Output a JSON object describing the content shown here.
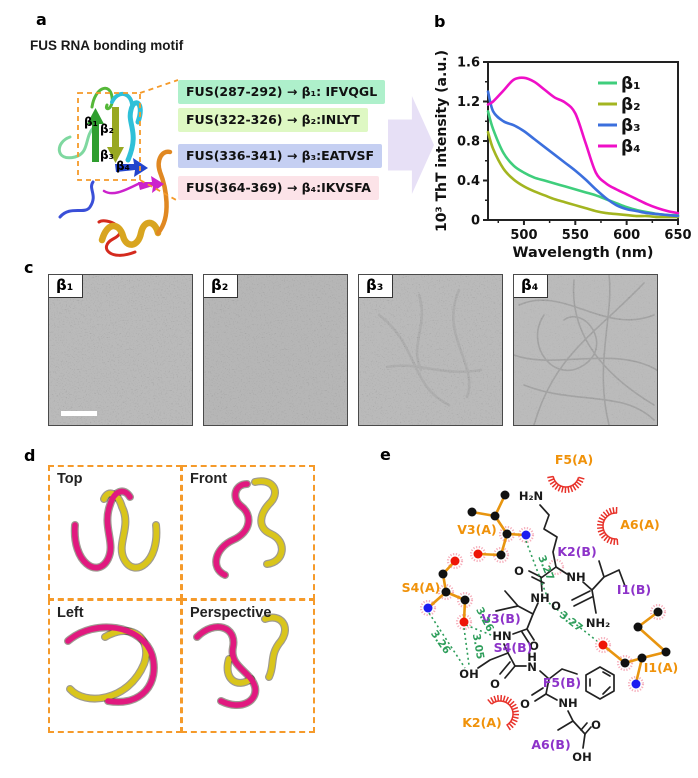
{
  "colors": {
    "beta1": "#3fce7c",
    "beta2": "#a3b520",
    "beta3": "#3b6fdd",
    "beta4": "#ef0fc7",
    "chain_a_label": "#f0920a",
    "chain_b_label": "#8d33c9",
    "hbond_green": "#2e9e5b",
    "contact_arc_red": "#e8322a",
    "map_box_backgrounds": [
      "#aef0cb",
      "#def8c3",
      "#c5cff2",
      "#fce3e8"
    ],
    "dashed_box_orange": "#f59a2a",
    "arrow_fill": "#e7e0f6",
    "tube_magenta": "#e1197f",
    "tube_yellow": "#d9c51b"
  },
  "panel_a": {
    "label": "a",
    "title": "FUS RNA bonding motif",
    "structure_beta_labels": [
      "β₁",
      "β₂",
      "β₃",
      "β₄"
    ],
    "mappings": [
      {
        "text": "FUS(287-292) → β₁: IFVQGL"
      },
      {
        "text": "FUS(322-326) → β₂:INLYT"
      },
      {
        "text": "FUS(336-341) → β₃:EATVSF"
      },
      {
        "text": "FUS(364-369) → β₄:IKVSFA"
      }
    ]
  },
  "panel_b": {
    "label": "b"
  },
  "chart_data": {
    "type": "line",
    "title": "",
    "xlabel": "Wavelength (nm)",
    "ylabel": "10³ ThT intensity (a.u.)",
    "xlim": [
      465,
      650
    ],
    "ylim": [
      0,
      1.6
    ],
    "xticks": [
      500,
      550,
      600,
      650
    ],
    "yticks": [
      0,
      0.4,
      0.8,
      1.2,
      1.6
    ],
    "grid": false,
    "legend_position": "upper right",
    "x": [
      465,
      470,
      480,
      490,
      500,
      510,
      520,
      530,
      540,
      550,
      560,
      570,
      580,
      590,
      600,
      610,
      620,
      630,
      640,
      650
    ],
    "series": [
      {
        "name": "β₁",
        "color": "#3fce7c",
        "values": [
          1.1,
          0.92,
          0.68,
          0.55,
          0.48,
          0.43,
          0.4,
          0.37,
          0.34,
          0.31,
          0.28,
          0.25,
          0.21,
          0.17,
          0.13,
          0.1,
          0.08,
          0.06,
          0.05,
          0.05
        ]
      },
      {
        "name": "β₂",
        "color": "#a3b520",
        "values": [
          0.89,
          0.72,
          0.52,
          0.41,
          0.34,
          0.29,
          0.25,
          0.21,
          0.18,
          0.15,
          0.12,
          0.09,
          0.07,
          0.06,
          0.05,
          0.04,
          0.04,
          0.03,
          0.03,
          0.03
        ]
      },
      {
        "name": "β₃",
        "color": "#3b6fdd",
        "values": [
          1.3,
          1.1,
          1.0,
          0.96,
          0.9,
          0.82,
          0.74,
          0.66,
          0.58,
          0.5,
          0.41,
          0.31,
          0.22,
          0.15,
          0.11,
          0.09,
          0.07,
          0.06,
          0.05,
          0.04
        ]
      },
      {
        "name": "β₄",
        "color": "#ef0fc7",
        "values": [
          1.17,
          1.2,
          1.31,
          1.42,
          1.44,
          1.4,
          1.32,
          1.24,
          1.19,
          1.08,
          0.78,
          0.48,
          0.37,
          0.31,
          0.26,
          0.21,
          0.16,
          0.12,
          0.09,
          0.07
        ]
      }
    ]
  },
  "panel_c": {
    "label": "c",
    "images": [
      {
        "label": "β₁"
      },
      {
        "label": "β₂"
      },
      {
        "label": "β₃"
      },
      {
        "label": "β₄"
      }
    ]
  },
  "panel_d": {
    "label": "d",
    "views": [
      {
        "name": "Top"
      },
      {
        "name": "Front"
      },
      {
        "name": "Left"
      },
      {
        "name": "Perspective"
      }
    ]
  },
  "panel_e": {
    "label": "e",
    "chain_a_residues": [
      {
        "name": "F5(A)"
      },
      {
        "name": "A6(A)"
      },
      {
        "name": "V3(A)"
      },
      {
        "name": "S4(A)"
      },
      {
        "name": "K2(A)"
      },
      {
        "name": "I1(A)"
      }
    ],
    "chain_b_residues": [
      {
        "name": "K2(B)"
      },
      {
        "name": "I1(B)"
      },
      {
        "name": "V3(B)"
      },
      {
        "name": "S4(B)"
      },
      {
        "name": "F5(B)"
      },
      {
        "name": "A6(B)"
      }
    ],
    "hbond_distances": [
      {
        "d": "3.27"
      },
      {
        "d": "3.27"
      },
      {
        "d": "3.26"
      },
      {
        "d": "3.05"
      },
      {
        "d": "3.26"
      }
    ],
    "atom_groups": {
      "h2n": "H₂N",
      "o_k2": "O",
      "nh_k2": "NH",
      "nh_v3b": "NH",
      "nh2_i1b": "NH₂",
      "o_i1b": "O",
      "hn_s4b": "HN",
      "oh_s4b": "OH",
      "o_v3b": "O",
      "o_s4b": "O",
      "h_f5b": "H",
      "n_f5b": "N",
      "o_f5b": "O",
      "nh_a6b": "NH",
      "o_a6b": "O",
      "oh_a6b": "OH"
    }
  }
}
